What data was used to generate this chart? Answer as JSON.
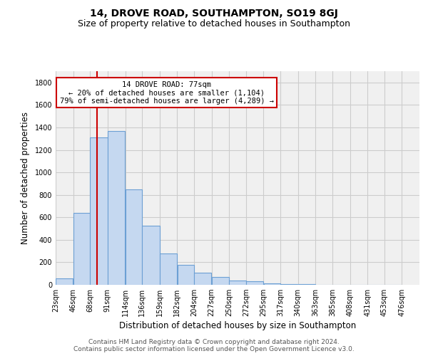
{
  "title": "14, DROVE ROAD, SOUTHAMPTON, SO19 8GJ",
  "subtitle": "Size of property relative to detached houses in Southampton",
  "xlabel": "Distribution of detached houses by size in Southampton",
  "ylabel": "Number of detached properties",
  "footnote1": "Contains HM Land Registry data © Crown copyright and database right 2024.",
  "footnote2": "Contains public sector information licensed under the Open Government Licence v3.0.",
  "bar_left_edges": [
    23,
    46,
    68,
    91,
    114,
    136,
    159,
    182,
    204,
    227,
    250,
    272,
    295,
    317,
    340,
    363,
    385,
    408,
    431,
    453
  ],
  "bar_widths": [
    23,
    22,
    23,
    23,
    22,
    23,
    23,
    22,
    23,
    23,
    22,
    23,
    22,
    23,
    23,
    22,
    23,
    23,
    22,
    23
  ],
  "bar_heights": [
    60,
    640,
    1310,
    1370,
    850,
    525,
    280,
    180,
    105,
    70,
    35,
    30,
    15,
    8,
    4,
    2,
    2,
    1,
    1,
    0
  ],
  "bar_facecolor": "#c5d8f0",
  "bar_edgecolor": "#6ca0d4",
  "bar_linewidth": 0.8,
  "vline_x": 77,
  "vline_color": "#cc0000",
  "vline_lw": 1.5,
  "annotation_line1": "14 DROVE ROAD: 77sqm",
  "annotation_line2": "← 20% of detached houses are smaller (1,104)",
  "annotation_line3": "79% of semi-detached houses are larger (4,289) →",
  "annotation_box_edgecolor": "#cc0000",
  "annotation_box_facecolor": "white",
  "ylim": [
    0,
    1900
  ],
  "xlim": [
    23,
    499
  ],
  "xtick_labels": [
    "23sqm",
    "46sqm",
    "68sqm",
    "91sqm",
    "114sqm",
    "136sqm",
    "159sqm",
    "182sqm",
    "204sqm",
    "227sqm",
    "250sqm",
    "272sqm",
    "295sqm",
    "317sqm",
    "340sqm",
    "363sqm",
    "385sqm",
    "408sqm",
    "431sqm",
    "453sqm",
    "476sqm"
  ],
  "xtick_positions": [
    23,
    46,
    68,
    91,
    114,
    136,
    159,
    182,
    204,
    227,
    250,
    272,
    295,
    317,
    340,
    363,
    385,
    408,
    431,
    453,
    476
  ],
  "ytick_positions": [
    0,
    200,
    400,
    600,
    800,
    1000,
    1200,
    1400,
    1600,
    1800
  ],
  "grid_color": "#cccccc",
  "bg_color": "#f0f0f0",
  "title_fontsize": 10,
  "subtitle_fontsize": 9,
  "xlabel_fontsize": 8.5,
  "ylabel_fontsize": 8.5,
  "tick_fontsize": 7,
  "annotation_fontsize": 7.5,
  "footnote_fontsize": 6.5
}
